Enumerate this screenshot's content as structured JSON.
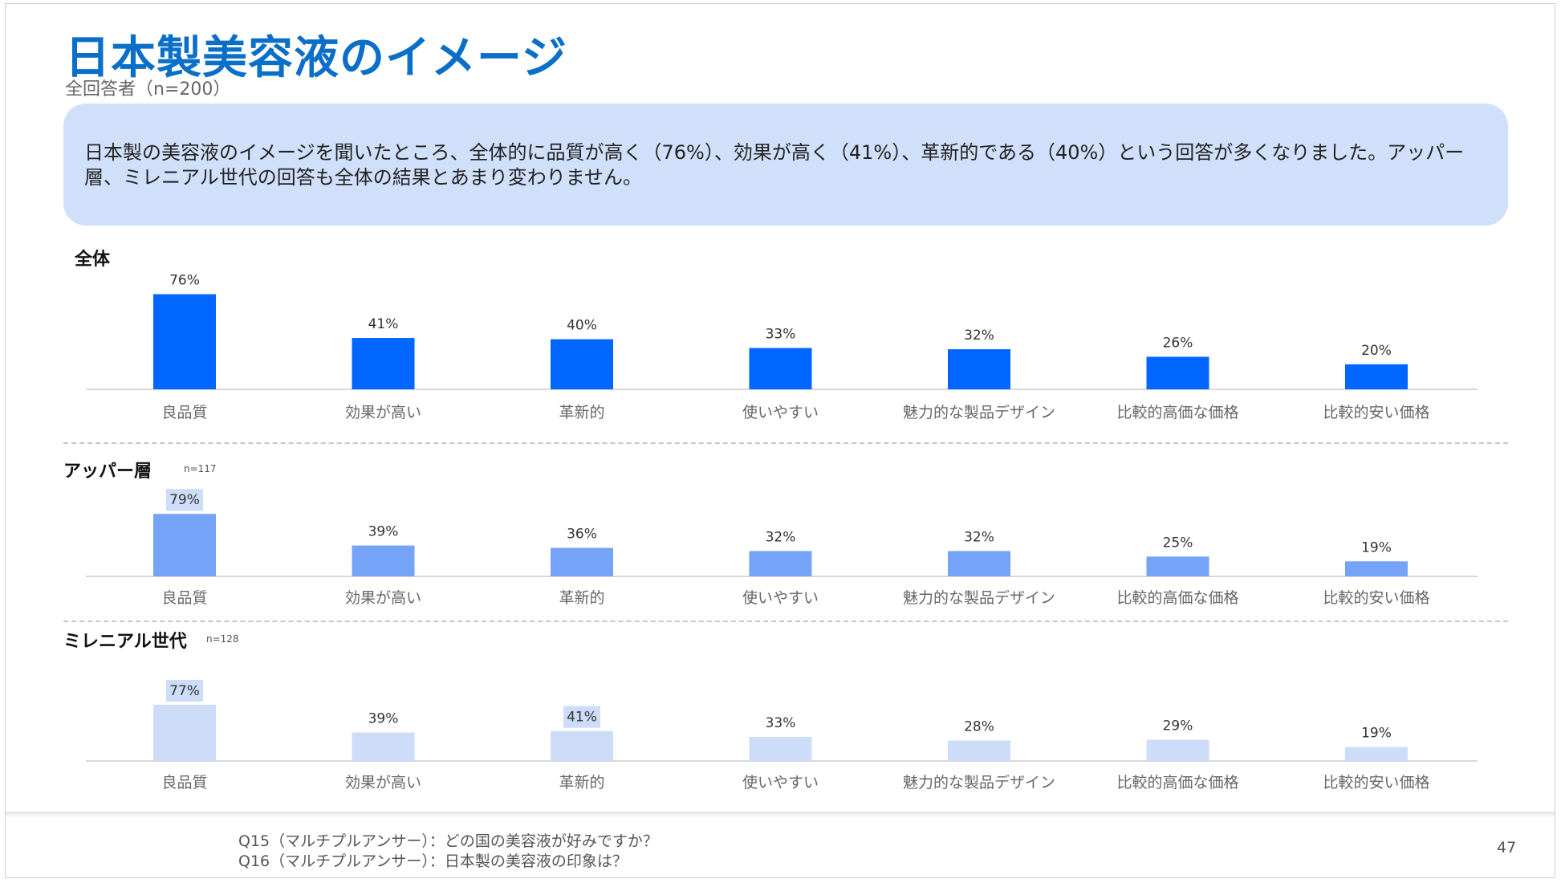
{
  "header": {
    "title": "日本製美容液のイメージ",
    "subtitle": "全回答者（n=200）"
  },
  "summary": {
    "text": "日本製の美容液のイメージを聞いたところ、全体的に品質が高く（76%）、効果が高く（41%）、革新的である（40%）という回答が多くなりました。アッパー層、ミレニアル世代の回答も全体の結果とあまり変わりません。"
  },
  "colors": {
    "title": "#0a6fc8",
    "summary_bg": "#d0e0fa",
    "series_all": "#0066ff",
    "series_upper": "#74a3f7",
    "series_millennial": "#cddcf8",
    "highlight_bg": "#cddcf8"
  },
  "chart_data": [
    {
      "type": "bar",
      "title": "全体",
      "n_label": "",
      "categories": [
        "良品質",
        "効果が高い",
        "革新的",
        "使いやすい",
        "魅力的な製品デザイン",
        "比較的高価な価格",
        "比較的安い価格"
      ],
      "values": [
        76,
        41,
        40,
        33,
        32,
        26,
        20
      ],
      "value_labels": [
        "76%",
        "41%",
        "40%",
        "33%",
        "32%",
        "26%",
        "20%"
      ],
      "highlighted": [],
      "color": "#0066ff",
      "ylim": [
        0,
        100
      ]
    },
    {
      "type": "bar",
      "title": "アッパー層",
      "n_label": "n=117",
      "categories": [
        "良品質",
        "効果が高い",
        "革新的",
        "使いやすい",
        "魅力的な製品デザイン",
        "比較的高価な価格",
        "比較的安い価格"
      ],
      "values": [
        79,
        39,
        36,
        32,
        32,
        25,
        19
      ],
      "value_labels": [
        "79%",
        "39%",
        "36%",
        "32%",
        "32%",
        "25%",
        "19%"
      ],
      "highlighted": [
        0
      ],
      "color": "#74a3f7",
      "ylim": [
        0,
        100
      ]
    },
    {
      "type": "bar",
      "title": "ミレニアル世代",
      "n_label": "n=128",
      "categories": [
        "良品質",
        "効果が高い",
        "革新的",
        "使いやすい",
        "魅力的な製品デザイン",
        "比較的高価な価格",
        "比較的安い価格"
      ],
      "values": [
        77,
        39,
        41,
        33,
        28,
        29,
        19
      ],
      "value_labels": [
        "77%",
        "39%",
        "41%",
        "33%",
        "28%",
        "29%",
        "19%"
      ],
      "highlighted": [
        0,
        2
      ],
      "color": "#cddcf8",
      "ylim": [
        0,
        100
      ]
    }
  ],
  "footer": {
    "lines": [
      "Q15（マルチプルアンサー）：どの国の美容液が好みですか？",
      "Q16（マルチプルアンサー）：日本製の美容液の印象は？"
    ],
    "page_number": "47"
  }
}
